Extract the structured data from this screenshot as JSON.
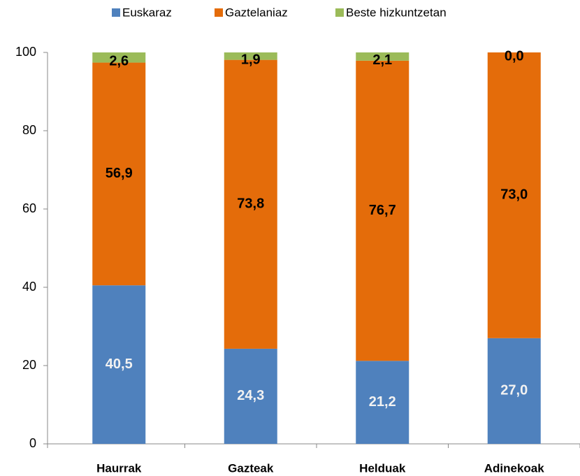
{
  "chart_data": {
    "type": "stacked_bar",
    "categories": [
      "Haurrak",
      "Gazteak",
      "Helduak",
      "Adinekoak"
    ],
    "series": [
      {
        "name": "Euskaraz",
        "color": "#4f81bd",
        "label_color": "#f2f2f2",
        "values": [
          40.5,
          24.3,
          21.2,
          27.0
        ],
        "value_labels": [
          "40,5",
          "24,3",
          "21,2",
          "27,0"
        ]
      },
      {
        "name": "Gaztelaniaz",
        "color": "#e46c0a",
        "label_color": "#000000",
        "values": [
          56.9,
          73.8,
          76.7,
          73.0
        ],
        "value_labels": [
          "56,9",
          "73,8",
          "76,7",
          "73,0"
        ]
      },
      {
        "name": "Beste hizkuntzetan",
        "color": "#9bbb59",
        "label_color": "#000000",
        "values": [
          2.6,
          1.9,
          2.1,
          0.0
        ],
        "value_labels": [
          "2,6",
          "1,9",
          "2,1",
          "0,0"
        ]
      }
    ],
    "ylim": [
      0,
      100
    ],
    "yticks": [
      0,
      20,
      40,
      60,
      80,
      100
    ],
    "grid": false,
    "legend": "top"
  }
}
